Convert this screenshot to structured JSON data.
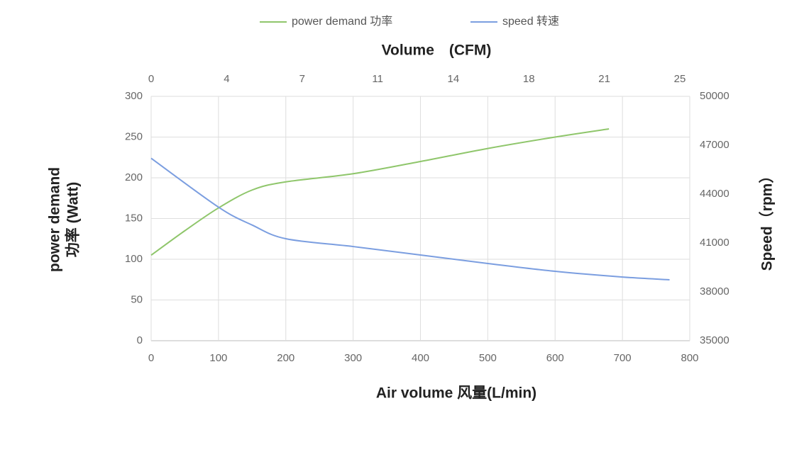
{
  "chart_data": {
    "type": "line",
    "title": "Volume　(CFM)",
    "x_label": "Air volume 风量(L/min)",
    "y_label": [
      "power demand",
      "功率 (Watt)"
    ],
    "y2_label": "Speed（rpm）",
    "xlim": [
      0,
      800
    ],
    "xticks": [
      0,
      100,
      200,
      300,
      400,
      500,
      600,
      700,
      800
    ],
    "x2lim": [
      0,
      25.47
    ],
    "x2ticks": [
      0,
      {
        "value": 3.57,
        "label": "4"
      },
      {
        "value": 7.14,
        "label": "7"
      },
      {
        "value": 10.71,
        "label": "11"
      },
      {
        "value": 14.29,
        "label": "14"
      },
      {
        "value": 17.86,
        "label": "18"
      },
      {
        "value": 21.43,
        "label": "21"
      },
      25
    ],
    "ylim": [
      0,
      300
    ],
    "yticks": [
      0,
      50,
      100,
      150,
      200,
      250,
      300
    ],
    "y2lim": [
      35000,
      50000
    ],
    "y2ticks": [
      35000,
      38000,
      41000,
      44000,
      47000,
      50000
    ],
    "grid": true,
    "legend": "top",
    "series": [
      {
        "name": "power demand 功率",
        "color": "#8fc66b",
        "x": [
          0,
          50,
          100,
          150,
          200,
          300,
          400,
          500,
          600,
          680
        ],
        "values": [
          105,
          135,
          163,
          185,
          195,
          205,
          220,
          236,
          250,
          260
        ]
      },
      {
        "name": "speed 转速",
        "color": "#7b9ee0",
        "axis": "y2",
        "x": [
          0,
          100,
          150,
          200,
          300,
          400,
          500,
          600,
          700,
          770
        ],
        "values": [
          46200,
          43200,
          42100,
          41260,
          40780,
          40260,
          39740,
          39260,
          38910,
          38740
        ]
      }
    ]
  }
}
